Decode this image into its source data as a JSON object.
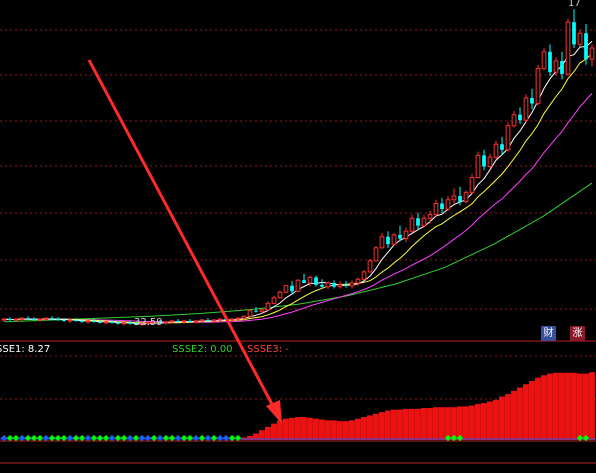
{
  "colors": {
    "background": "#000000",
    "grid": "#8a1a1a",
    "divider": "#c02020",
    "up": "#ff3030",
    "down": "#00ffff",
    "ma5": "#ffffff",
    "ma10": "#ffff40",
    "ma20": "#ff40ff",
    "ma60": "#30d030",
    "arrow": "#ff2a2a",
    "ssse1": "#ffffff",
    "ssse2": "#30d030",
    "ssse3": "#ff4040",
    "marker_green": "#00ff00",
    "marker_blue": "#2060ff"
  },
  "price_panel": {
    "top_label": "17",
    "low_label": "32.59",
    "badges": [
      {
        "name": "cai-badge",
        "text": "财",
        "color": "#3a4fa0"
      },
      {
        "name": "zhang-badge",
        "text": "涨",
        "color": "#8a1a2a"
      }
    ]
  },
  "indicator_panel": {
    "labels": {
      "ssse1": "SSE1: 8.27",
      "ssse2": "SSSE2: 0.00",
      "ssse3": "SSSE3: -"
    }
  },
  "chart_data": {
    "type": "candlestick",
    "title": "",
    "xlabel": "",
    "ylabel": "",
    "candles": [
      [
        33.2,
        33.4,
        33.0,
        33.3
      ],
      [
        33.3,
        33.5,
        33.1,
        33.2
      ],
      [
        33.2,
        33.4,
        33.0,
        33.3
      ],
      [
        33.3,
        33.5,
        33.1,
        33.4
      ],
      [
        33.4,
        33.6,
        33.2,
        33.3
      ],
      [
        33.3,
        33.5,
        33.1,
        33.2
      ],
      [
        33.2,
        33.4,
        33.0,
        33.3
      ],
      [
        33.3,
        33.5,
        33.1,
        33.4
      ],
      [
        33.4,
        33.6,
        33.2,
        33.3
      ],
      [
        33.3,
        33.5,
        33.1,
        33.2
      ],
      [
        33.2,
        33.4,
        33.0,
        33.1
      ],
      [
        33.1,
        33.3,
        32.9,
        33.2
      ],
      [
        33.2,
        33.4,
        33.0,
        33.1
      ],
      [
        33.1,
        33.3,
        32.9,
        33.0
      ],
      [
        33.0,
        33.2,
        32.8,
        33.1
      ],
      [
        33.1,
        33.3,
        32.9,
        33.0
      ],
      [
        33.0,
        33.2,
        32.8,
        32.9
      ],
      [
        32.9,
        33.1,
        32.7,
        33.0
      ],
      [
        33.0,
        33.2,
        32.8,
        32.9
      ],
      [
        32.9,
        33.1,
        32.7,
        32.8
      ],
      [
        32.8,
        33.0,
        32.6,
        32.9
      ],
      [
        32.9,
        33.1,
        32.7,
        32.8
      ],
      [
        32.8,
        33.0,
        32.6,
        32.7
      ],
      [
        32.7,
        32.9,
        32.59,
        32.8
      ],
      [
        32.8,
        33.0,
        32.6,
        32.9
      ],
      [
        32.9,
        33.1,
        32.7,
        33.0
      ],
      [
        33.0,
        33.2,
        32.8,
        32.9
      ],
      [
        32.9,
        33.1,
        32.7,
        33.0
      ],
      [
        33.0,
        33.2,
        32.8,
        33.1
      ],
      [
        33.1,
        33.3,
        32.9,
        33.0
      ],
      [
        33.0,
        33.2,
        32.8,
        33.1
      ],
      [
        33.1,
        33.3,
        32.9,
        33.0
      ],
      [
        33.0,
        33.2,
        32.8,
        33.1
      ],
      [
        33.1,
        33.3,
        32.9,
        33.2
      ],
      [
        33.2,
        33.4,
        33.0,
        33.1
      ],
      [
        33.1,
        33.3,
        32.9,
        33.2
      ],
      [
        33.2,
        33.4,
        33.0,
        33.3
      ],
      [
        33.3,
        33.5,
        33.1,
        33.2
      ],
      [
        33.2,
        33.4,
        33.0,
        33.3
      ],
      [
        33.3,
        33.5,
        33.1,
        33.4
      ],
      [
        33.4,
        33.7,
        33.2,
        33.6
      ],
      [
        33.6,
        34.3,
        33.5,
        34.2
      ],
      [
        34.2,
        34.6,
        34.0,
        34.1
      ],
      [
        34.1,
        34.4,
        33.9,
        34.3
      ],
      [
        34.3,
        35.2,
        34.2,
        35.0
      ],
      [
        35.0,
        35.8,
        34.9,
        35.6
      ],
      [
        35.6,
        36.4,
        35.5,
        36.2
      ],
      [
        36.2,
        37.0,
        36.1,
        36.9
      ],
      [
        36.9,
        37.4,
        36.0,
        36.3
      ],
      [
        36.3,
        37.6,
        36.2,
        37.5
      ],
      [
        37.5,
        38.2,
        37.4,
        37.2
      ],
      [
        37.2,
        38.0,
        36.8,
        37.8
      ],
      [
        37.8,
        38.0,
        36.8,
        37.0
      ],
      [
        37.0,
        37.6,
        36.7,
        36.8
      ],
      [
        36.8,
        37.4,
        36.5,
        37.2
      ],
      [
        37.2,
        37.5,
        36.6,
        36.8
      ],
      [
        36.8,
        37.4,
        36.6,
        37.0
      ],
      [
        37.0,
        37.4,
        36.7,
        36.9
      ],
      [
        36.9,
        37.5,
        36.6,
        37.2
      ],
      [
        37.2,
        37.8,
        36.9,
        37.6
      ],
      [
        37.6,
        38.6,
        37.5,
        38.4
      ],
      [
        38.4,
        39.8,
        38.3,
        39.6
      ],
      [
        39.6,
        41.2,
        39.5,
        41.0
      ],
      [
        41.0,
        42.6,
        40.9,
        42.2
      ],
      [
        42.2,
        42.8,
        41.0,
        41.4
      ],
      [
        41.4,
        42.6,
        41.2,
        42.4
      ],
      [
        42.4,
        43.4,
        41.8,
        42.0
      ],
      [
        42.0,
        43.2,
        41.6,
        42.8
      ],
      [
        42.8,
        44.6,
        42.6,
        44.2
      ],
      [
        44.2,
        44.8,
        43.0,
        43.4
      ],
      [
        43.4,
        44.6,
        43.2,
        44.2
      ],
      [
        44.2,
        45.0,
        43.6,
        44.6
      ],
      [
        44.6,
        46.2,
        44.4,
        45.8
      ],
      [
        45.8,
        46.4,
        44.8,
        45.2
      ],
      [
        45.2,
        46.6,
        45.0,
        46.2
      ],
      [
        46.2,
        47.4,
        45.8,
        46.6
      ],
      [
        46.6,
        47.6,
        45.6,
        46.0
      ],
      [
        46.0,
        47.2,
        45.8,
        47.0
      ],
      [
        47.0,
        49.0,
        46.8,
        48.6
      ],
      [
        48.6,
        51.4,
        48.5,
        51.0
      ],
      [
        51.0,
        51.6,
        49.4,
        49.8
      ],
      [
        49.8,
        51.2,
        49.6,
        50.8
      ],
      [
        50.8,
        52.6,
        50.6,
        52.2
      ],
      [
        52.2,
        53.0,
        51.0,
        51.6
      ],
      [
        51.6,
        54.6,
        51.4,
        54.2
      ],
      [
        54.2,
        55.8,
        54.0,
        55.4
      ],
      [
        55.4,
        56.2,
        54.4,
        54.8
      ],
      [
        54.8,
        57.6,
        54.6,
        57.2
      ],
      [
        57.2,
        58.2,
        56.0,
        56.6
      ],
      [
        56.6,
        60.8,
        56.4,
        60.4
      ],
      [
        60.4,
        62.6,
        60.2,
        62.2
      ],
      [
        62.2,
        63.0,
        59.6,
        60.0
      ],
      [
        60.0,
        61.6,
        59.6,
        61.2
      ],
      [
        61.2,
        62.2,
        59.2,
        59.8
      ],
      [
        59.8,
        65.8,
        59.6,
        65.4
      ],
      [
        65.4,
        66.8,
        62.6,
        63.0
      ],
      [
        63.0,
        64.6,
        62.8,
        64.2
      ],
      [
        64.2,
        65.2,
        60.8,
        61.4
      ],
      [
        61.4,
        63.0,
        60.6,
        62.6
      ]
    ],
    "ma60": [
      33.0,
      33.2,
      33.4,
      33.6,
      33.9,
      34.3,
      34.9,
      35.8,
      37.1,
      38.9,
      41.4,
      44.4,
      48.0
    ],
    "ylim": [
      31.9,
      67.8
    ],
    "indicator": {
      "type": "bar",
      "values": [
        0,
        0,
        0,
        0,
        0,
        0,
        0,
        0,
        0,
        0,
        0,
        0,
        0,
        0,
        0,
        0,
        0,
        0,
        0,
        0,
        0,
        0,
        0,
        0,
        0,
        0,
        0,
        0,
        0,
        0,
        0,
        0,
        0,
        0,
        0,
        0,
        0,
        0,
        0,
        0,
        0.3,
        0.5,
        0.8,
        1.2,
        1.6,
        2.0,
        2.4,
        2.6,
        2.7,
        2.8,
        2.8,
        2.7,
        2.6,
        2.5,
        2.4,
        2.4,
        2.3,
        2.3,
        2.4,
        2.6,
        2.8,
        3.0,
        3.2,
        3.4,
        3.6,
        3.7,
        3.7,
        3.8,
        3.8,
        3.8,
        3.9,
        3.9,
        4.0,
        4.0,
        4.0,
        4.0,
        4.1,
        4.1,
        4.2,
        4.4,
        4.5,
        4.7,
        4.9,
        5.3,
        5.6,
        6.0,
        6.4,
        6.8,
        7.2,
        7.6,
        7.9,
        8.1,
        8.2,
        8.2,
        8.2,
        8.2,
        8.1,
        8.1,
        8.27
      ],
      "ylim": [
        0,
        10
      ],
      "markers": [
        "b",
        "g",
        "g",
        "b",
        "g",
        "g",
        "g",
        "b",
        "g",
        "g",
        "g",
        "b",
        "g",
        "g",
        "b",
        "g",
        "g",
        "g",
        "b",
        "g",
        "g",
        "b",
        "g",
        "b",
        "b",
        "g",
        "b",
        "g",
        "g",
        "b",
        "g",
        "g",
        "b",
        "g",
        "b",
        "g",
        "b",
        "b",
        "g",
        "g",
        "",
        "",
        "",
        "",
        "",
        "",
        "",
        "",
        "",
        "",
        "",
        "",
        "",
        "",
        "",
        "",
        "",
        "",
        "",
        "",
        "",
        "",
        "",
        "",
        "",
        "",
        "",
        "",
        "",
        "",
        "",
        "",
        "",
        "",
        "",
        "",
        "",
        "",
        "",
        "",
        "",
        "",
        "",
        "",
        "",
        "",
        "",
        "",
        "",
        "",
        "",
        "",
        "",
        "",
        "",
        "",
        "",
        "",
        "",
        ""
      ]
    }
  }
}
